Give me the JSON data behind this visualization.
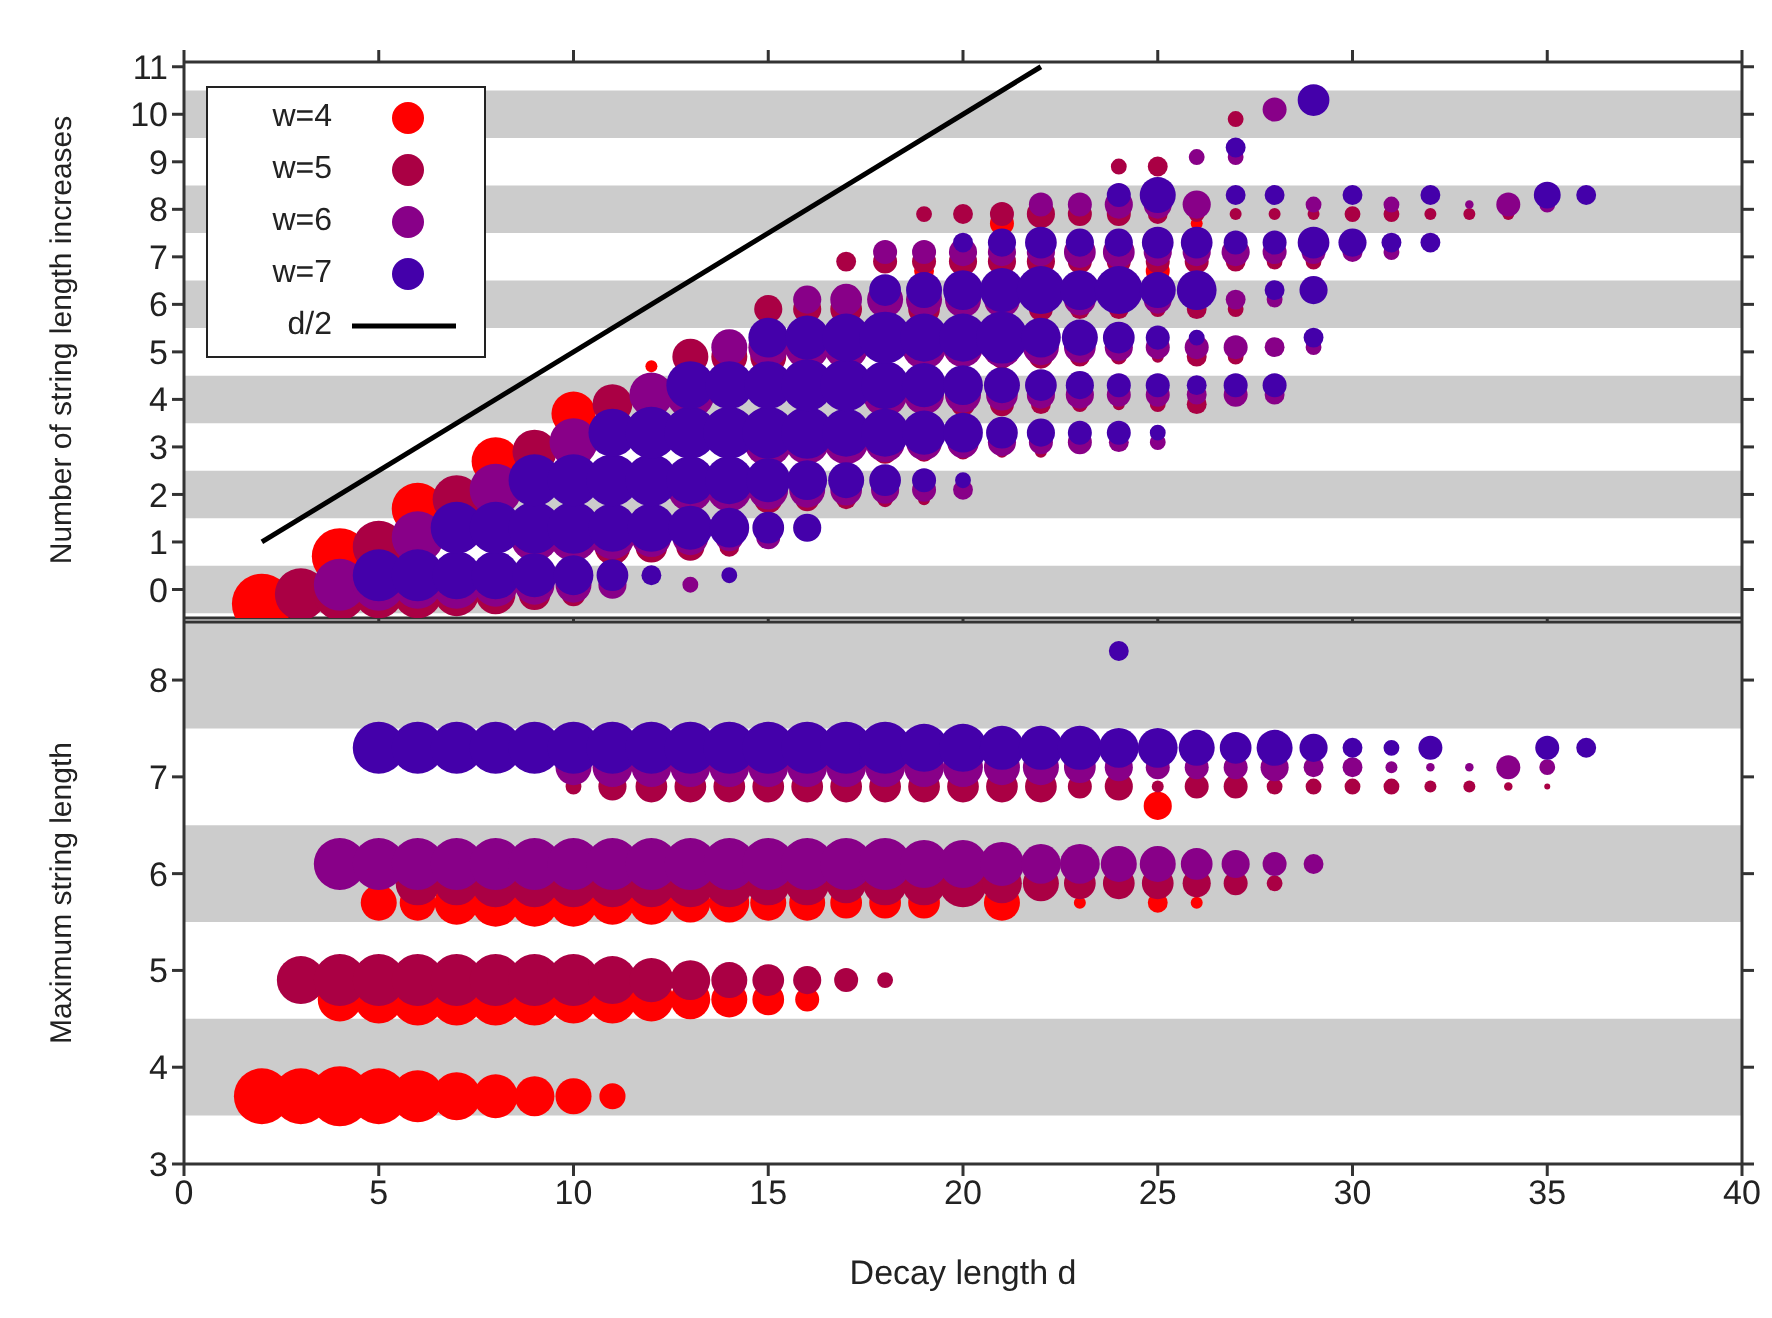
{
  "chart_data": [
    {
      "type": "bubble",
      "ylabel": "Number of string length increases",
      "xlim": [
        0,
        40
      ],
      "xticks": [
        0,
        5,
        10,
        15,
        20,
        25,
        30,
        35,
        40
      ],
      "ylim": [
        -0.6,
        11.1
      ],
      "yticks": [
        0,
        1,
        2,
        3,
        4,
        5,
        6,
        7,
        8,
        9,
        10,
        11
      ],
      "tick_labels": "y",
      "legend": "top left",
      "bands": [
        {
          "axis": "y",
          "from": -0.5,
          "to": 0.5,
          "color": "#cccccc"
        },
        {
          "axis": "y",
          "from": 1.5,
          "to": 2.5,
          "color": "#cccccc"
        },
        {
          "axis": "y",
          "from": 3.5,
          "to": 4.5,
          "color": "#cccccc"
        },
        {
          "axis": "y",
          "from": 5.5,
          "to": 6.5,
          "color": "#cccccc"
        },
        {
          "axis": "y",
          "from": 7.5,
          "to": 8.5,
          "color": "#cccccc"
        },
        {
          "axis": "y",
          "from": 9.5,
          "to": 10.5,
          "color": "#cccccc"
        }
      ],
      "series": [
        {
          "name": "w=4",
          "color": "#ff0000",
          "x": [
            2,
            4,
            6,
            8,
            10,
            12,
            19,
            21,
            25,
            26
          ],
          "values": [
            -0.3,
            0.7,
            1.7,
            2.7,
            3.7,
            4.7,
            6.7,
            7.7,
            6.7,
            7.7
          ],
          "sizes": [
            1,
            0.87,
            0.75,
            0.64,
            0.54,
            0.04,
            0.11,
            0.16,
            0.16,
            0.04
          ]
        },
        {
          "name": "w=5",
          "color": "#aa0044",
          "x": [
            3,
            4,
            5,
            6,
            7,
            8,
            9,
            10,
            5,
            11,
            12,
            13,
            14,
            7,
            15,
            16,
            17,
            18,
            19,
            9,
            18,
            19,
            20,
            21,
            22,
            11,
            20,
            21,
            22,
            23,
            24,
            25,
            26,
            13,
            14,
            15,
            21,
            22,
            23,
            24,
            25,
            26,
            27,
            15,
            16,
            17,
            19,
            22,
            23,
            24,
            25,
            26,
            27,
            17,
            18,
            19,
            20,
            21,
            22,
            23,
            24,
            25,
            26,
            27,
            28,
            29,
            19,
            20,
            21,
            22,
            23,
            24,
            25,
            26,
            27,
            28,
            29,
            30,
            31,
            32,
            33,
            34,
            24,
            25,
            27
          ],
          "values": [
            -0.1,
            -0.1,
            -0.1,
            -0.1,
            -0.1,
            -0.1,
            -0.1,
            -0.1,
            0.9,
            0.9,
            0.9,
            0.9,
            0.9,
            1.9,
            1.9,
            1.9,
            1.9,
            1.9,
            1.9,
            2.9,
            2.9,
            2.9,
            2.9,
            2.9,
            2.9,
            3.9,
            3.9,
            3.9,
            3.9,
            3.9,
            3.9,
            3.9,
            3.9,
            4.9,
            4.9,
            4.9,
            4.9,
            4.9,
            4.9,
            4.9,
            4.9,
            4.9,
            4.9,
            5.9,
            5.9,
            5.9,
            5.9,
            5.9,
            5.9,
            5.9,
            5.9,
            5.9,
            5.9,
            6.9,
            6.9,
            6.9,
            6.9,
            6.9,
            6.9,
            6.9,
            6.9,
            6.9,
            6.9,
            6.9,
            6.9,
            6.9,
            7.9,
            7.9,
            7.9,
            7.9,
            7.9,
            7.9,
            7.9,
            7.9,
            7.9,
            7.9,
            7.9,
            7.9,
            7.9,
            7.9,
            7.9,
            7.9,
            8.9,
            8.9,
            9.9
          ],
          "sizes": [
            0.75,
            0.75,
            0.64,
            0.64,
            0.54,
            0.44,
            0.28,
            0.16,
            0.75,
            0.36,
            0.28,
            0.22,
            0.11,
            0.64,
            0.22,
            0.16,
            0.11,
            0.07,
            0.04,
            0.54,
            0.16,
            0.11,
            0.07,
            0.04,
            0.04,
            0.44,
            0.16,
            0.16,
            0.11,
            0.07,
            0.04,
            0.07,
            0.11,
            0.36,
            0.36,
            0.36,
            0.16,
            0.16,
            0.11,
            0.07,
            0.04,
            0.11,
            0.07,
            0.22,
            0.22,
            0.28,
            0.28,
            0.16,
            0.11,
            0.11,
            0.07,
            0.11,
            0.07,
            0.11,
            0.16,
            0.16,
            0.22,
            0.22,
            0.22,
            0.16,
            0.16,
            0.16,
            0.16,
            0.11,
            0.07,
            0.07,
            0.07,
            0.11,
            0.16,
            0.22,
            0.16,
            0.16,
            0.11,
            0.07,
            0.04,
            0.04,
            0.04,
            0.07,
            0.07,
            0.04,
            0.04,
            0.04,
            0.07,
            0.11,
            0.07
          ]
        },
        {
          "name": "w=6",
          "color": "#880088",
          "x": [
            4,
            5,
            6,
            7,
            8,
            9,
            10,
            11,
            13,
            6,
            9,
            10,
            11,
            12,
            13,
            14,
            15,
            8,
            13,
            14,
            15,
            16,
            17,
            18,
            19,
            20,
            10,
            15,
            16,
            17,
            18,
            19,
            20,
            21,
            22,
            23,
            24,
            25,
            12,
            13,
            18,
            19,
            20,
            21,
            22,
            23,
            24,
            25,
            26,
            27,
            28,
            14,
            15,
            16,
            17,
            19,
            20,
            21,
            22,
            23,
            24,
            25,
            26,
            27,
            28,
            29,
            16,
            17,
            18,
            19,
            20,
            21,
            23,
            25,
            27,
            28,
            18,
            19,
            20,
            21,
            22,
            23,
            24,
            25,
            26,
            27,
            28,
            29,
            30,
            31,
            22,
            23,
            24,
            25,
            26,
            29,
            31,
            33,
            34,
            35,
            26,
            27,
            28
          ],
          "values": [
            0.1,
            0.1,
            0.1,
            0.1,
            0.1,
            0.1,
            0.1,
            0.1,
            0.1,
            1.1,
            1.1,
            1.1,
            1.1,
            1.1,
            1.1,
            1.1,
            1.1,
            2.1,
            2.1,
            2.1,
            2.1,
            2.1,
            2.1,
            2.1,
            2.1,
            2.1,
            3.1,
            3.1,
            3.1,
            3.1,
            3.1,
            3.1,
            3.1,
            3.1,
            3.1,
            3.1,
            3.1,
            3.1,
            4.1,
            4.1,
            4.1,
            4.1,
            4.1,
            4.1,
            4.1,
            4.1,
            4.1,
            4.1,
            4.1,
            4.1,
            4.1,
            5.1,
            5.1,
            5.1,
            5.1,
            5.1,
            5.1,
            5.1,
            5.1,
            5.1,
            5.1,
            5.1,
            5.1,
            5.1,
            5.1,
            5.1,
            6.1,
            6.1,
            6.1,
            6.1,
            6.1,
            6.1,
            6.1,
            6.1,
            6.1,
            6.1,
            7.1,
            7.1,
            7.1,
            7.1,
            7.1,
            7.1,
            7.1,
            7.1,
            7.1,
            7.1,
            7.1,
            7.1,
            7.1,
            7.1,
            8.1,
            8.1,
            8.1,
            8.1,
            8.1,
            8.1,
            8.1,
            8.1,
            8.1,
            8.1,
            9.1,
            9.1,
            10.1
          ],
          "sizes": [
            0.75,
            0.75,
            0.64,
            0.64,
            0.54,
            0.44,
            0.36,
            0.22,
            0.07,
            0.75,
            0.64,
            0.64,
            0.54,
            0.44,
            0.36,
            0.22,
            0.16,
            0.75,
            0.54,
            0.54,
            0.44,
            0.36,
            0.28,
            0.22,
            0.16,
            0.11,
            0.64,
            0.64,
            0.54,
            0.54,
            0.44,
            0.36,
            0.28,
            0.22,
            0.16,
            0.16,
            0.11,
            0.07,
            0.54,
            0.64,
            0.54,
            0.44,
            0.36,
            0.28,
            0.22,
            0.22,
            0.16,
            0.16,
            0.11,
            0.16,
            0.11,
            0.36,
            0.44,
            0.54,
            0.54,
            0.54,
            0.44,
            0.44,
            0.36,
            0.28,
            0.22,
            0.16,
            0.16,
            0.16,
            0.11,
            0.07,
            0.22,
            0.28,
            0.36,
            0.36,
            0.36,
            0.36,
            0.28,
            0.22,
            0.11,
            0.07,
            0.16,
            0.16,
            0.22,
            0.22,
            0.22,
            0.28,
            0.28,
            0.22,
            0.22,
            0.22,
            0.16,
            0.16,
            0.11,
            0.07,
            0.16,
            0.16,
            0.22,
            0.22,
            0.22,
            0.07,
            0.07,
            0.02,
            0.16,
            0.07,
            0.07,
            0.07,
            0.16
          ]
        },
        {
          "name": "w=7",
          "color": "#4400aa",
          "x": [
            5,
            6,
            7,
            8,
            9,
            10,
            11,
            12,
            14,
            7,
            8,
            9,
            10,
            11,
            12,
            13,
            14,
            15,
            16,
            9,
            10,
            11,
            12,
            13,
            14,
            15,
            16,
            17,
            18,
            19,
            20,
            11,
            12,
            13,
            14,
            15,
            16,
            17,
            18,
            19,
            20,
            21,
            22,
            23,
            24,
            25,
            13,
            14,
            15,
            16,
            17,
            18,
            19,
            20,
            21,
            22,
            23,
            24,
            25,
            26,
            27,
            28,
            15,
            16,
            17,
            18,
            19,
            20,
            21,
            22,
            23,
            24,
            25,
            26,
            29,
            18,
            19,
            20,
            21,
            22,
            23,
            24,
            25,
            26,
            28,
            29,
            20,
            21,
            22,
            23,
            24,
            25,
            26,
            27,
            28,
            29,
            30,
            31,
            32,
            24,
            25,
            27,
            28,
            30,
            32,
            35,
            36,
            27,
            29
          ],
          "values": [
            0.3,
            0.3,
            0.3,
            0.3,
            0.3,
            0.3,
            0.3,
            0.3,
            0.3,
            1.3,
            1.3,
            1.3,
            1.3,
            1.3,
            1.3,
            1.3,
            1.3,
            1.3,
            1.3,
            2.3,
            2.3,
            2.3,
            2.3,
            2.3,
            2.3,
            2.3,
            2.3,
            2.3,
            2.3,
            2.3,
            2.3,
            3.3,
            3.3,
            3.3,
            3.3,
            3.3,
            3.3,
            3.3,
            3.3,
            3.3,
            3.3,
            3.3,
            3.3,
            3.3,
            3.3,
            3.3,
            4.3,
            4.3,
            4.3,
            4.3,
            4.3,
            4.3,
            4.3,
            4.3,
            4.3,
            4.3,
            4.3,
            4.3,
            4.3,
            4.3,
            4.3,
            4.3,
            5.3,
            5.3,
            5.3,
            5.3,
            5.3,
            5.3,
            5.3,
            5.3,
            5.3,
            5.3,
            5.3,
            5.3,
            5.3,
            6.3,
            6.3,
            6.3,
            6.3,
            6.3,
            6.3,
            6.3,
            6.3,
            6.3,
            6.3,
            6.3,
            7.3,
            7.3,
            7.3,
            7.3,
            7.3,
            7.3,
            7.3,
            7.3,
            7.3,
            7.3,
            7.3,
            7.3,
            7.3,
            8.3,
            8.3,
            8.3,
            8.3,
            8.3,
            8.3,
            8.3,
            8.3,
            9.3,
            10.3
          ],
          "sizes": [
            0.75,
            0.75,
            0.64,
            0.64,
            0.54,
            0.44,
            0.28,
            0.11,
            0.07,
            0.75,
            0.75,
            0.75,
            0.75,
            0.64,
            0.64,
            0.54,
            0.44,
            0.28,
            0.22,
            0.75,
            0.75,
            0.75,
            0.75,
            0.64,
            0.64,
            0.54,
            0.44,
            0.36,
            0.28,
            0.16,
            0.07,
            0.64,
            0.75,
            0.75,
            0.75,
            0.75,
            0.75,
            0.64,
            0.64,
            0.54,
            0.44,
            0.28,
            0.22,
            0.16,
            0.16,
            0.07,
            0.64,
            0.64,
            0.64,
            0.75,
            0.75,
            0.64,
            0.54,
            0.44,
            0.36,
            0.28,
            0.22,
            0.16,
            0.16,
            0.11,
            0.16,
            0.16,
            0.44,
            0.54,
            0.64,
            0.75,
            0.64,
            0.64,
            0.75,
            0.44,
            0.36,
            0.28,
            0.16,
            0.07,
            0.11,
            0.28,
            0.36,
            0.44,
            0.54,
            0.64,
            0.44,
            0.64,
            0.36,
            0.44,
            0.11,
            0.22,
            0.11,
            0.22,
            0.28,
            0.22,
            0.22,
            0.28,
            0.28,
            0.16,
            0.16,
            0.28,
            0.22,
            0.11,
            0.11,
            0.16,
            0.36,
            0.11,
            0.11,
            0.11,
            0.11,
            0.2,
            0.11,
            0.11,
            0.28
          ]
        },
        {
          "name": "d/2",
          "type": "line",
          "color": "#000000",
          "x": [
            2,
            22
          ],
          "values": [
            1,
            11
          ]
        }
      ]
    },
    {
      "type": "bubble",
      "xlabel": "Decay length d",
      "ylabel": "Maximum string length",
      "xlim": [
        0,
        40
      ],
      "xticks": [
        0,
        5,
        10,
        15,
        20,
        25,
        30,
        35,
        40
      ],
      "ylim": [
        3,
        8.6
      ],
      "yticks": [
        3,
        4,
        5,
        6,
        7,
        8
      ],
      "bands": [
        {
          "axis": "y",
          "from": 3.5,
          "to": 4.5,
          "color": "#cccccc"
        },
        {
          "axis": "y",
          "from": 5.5,
          "to": 6.5,
          "color": "#cccccc"
        },
        {
          "axis": "y",
          "from": 7.5,
          "to": 8.6,
          "color": "#cccccc"
        }
      ],
      "series": [
        {
          "color": "#ff0000",
          "x": [
            2,
            3,
            4,
            5,
            6,
            7,
            8,
            9,
            10,
            11,
            4,
            5,
            6,
            7,
            8,
            9,
            10,
            11,
            12,
            13,
            14,
            15,
            16,
            5,
            6,
            7,
            8,
            9,
            10,
            11,
            12,
            13,
            14,
            15,
            16,
            17,
            18,
            19,
            21,
            23,
            25,
            26,
            25
          ],
          "values": [
            3.7,
            3.7,
            3.7,
            3.7,
            3.7,
            3.7,
            3.7,
            3.7,
            3.7,
            3.7,
            4.7,
            4.7,
            4.7,
            4.7,
            4.7,
            4.7,
            4.7,
            4.7,
            4.7,
            4.7,
            4.7,
            4.7,
            4.7,
            5.7,
            5.7,
            5.7,
            5.7,
            5.7,
            5.7,
            5.7,
            5.7,
            5.7,
            5.7,
            5.7,
            5.7,
            5.7,
            5.7,
            5.7,
            5.7,
            5.7,
            5.7,
            5.7,
            6.7
          ],
          "sizes": [
            0.87,
            0.87,
            1,
            0.87,
            0.75,
            0.64,
            0.54,
            0.44,
            0.36,
            0.19,
            0.54,
            0.64,
            0.75,
            0.75,
            0.75,
            0.75,
            0.64,
            0.64,
            0.54,
            0.44,
            0.36,
            0.28,
            0.16,
            0.36,
            0.36,
            0.54,
            0.64,
            0.64,
            0.64,
            0.54,
            0.54,
            0.44,
            0.44,
            0.36,
            0.36,
            0.28,
            0.28,
            0.28,
            0.36,
            0.04,
            0.11,
            0.04,
            0.22
          ]
        },
        {
          "color": "#aa0044",
          "x": [
            3,
            4,
            5,
            6,
            7,
            8,
            9,
            10,
            11,
            12,
            13,
            14,
            15,
            16,
            17,
            18,
            6,
            7,
            8,
            9,
            10,
            11,
            12,
            13,
            14,
            15,
            16,
            17,
            18,
            19,
            20,
            21,
            22,
            23,
            24,
            25,
            26,
            27,
            28,
            10,
            11,
            12,
            13,
            14,
            15,
            16,
            17,
            18,
            19,
            20,
            21,
            22,
            23,
            24,
            25,
            26,
            27,
            28,
            29,
            30,
            31,
            32,
            33,
            34,
            35
          ],
          "values": [
            4.9,
            4.9,
            4.9,
            4.9,
            4.9,
            4.9,
            4.9,
            4.9,
            4.9,
            4.9,
            4.9,
            4.9,
            4.9,
            4.9,
            4.9,
            4.9,
            5.9,
            5.9,
            5.9,
            5.9,
            5.9,
            5.9,
            5.9,
            5.9,
            5.9,
            5.9,
            5.9,
            5.9,
            5.9,
            5.9,
            5.9,
            5.9,
            5.9,
            5.9,
            5.9,
            5.9,
            5.9,
            5.9,
            5.9,
            6.9,
            6.9,
            6.9,
            6.9,
            6.9,
            6.9,
            6.9,
            6.9,
            6.9,
            6.9,
            6.9,
            6.9,
            6.9,
            6.9,
            6.9,
            6.9,
            6.9,
            6.9,
            6.9,
            6.9,
            6.9,
            6.9,
            6.9,
            6.9,
            6.9,
            6.9
          ],
          "sizes": [
            0.64,
            0.75,
            0.75,
            0.75,
            0.75,
            0.75,
            0.75,
            0.75,
            0.64,
            0.54,
            0.44,
            0.36,
            0.28,
            0.22,
            0.16,
            0.07,
            0.54,
            0.54,
            0.64,
            0.64,
            0.64,
            0.64,
            0.64,
            0.64,
            0.64,
            0.54,
            0.54,
            0.44,
            0.54,
            0.54,
            0.64,
            0.44,
            0.36,
            0.28,
            0.28,
            0.28,
            0.22,
            0.16,
            0.07,
            0.07,
            0.22,
            0.28,
            0.28,
            0.28,
            0.28,
            0.28,
            0.28,
            0.28,
            0.28,
            0.28,
            0.28,
            0.28,
            0.16,
            0.22,
            0.04,
            0.16,
            0.16,
            0.07,
            0.07,
            0.07,
            0.07,
            0.04,
            0.04,
            0.02,
            0.01
          ]
        },
        {
          "color": "#880088",
          "x": [
            4,
            5,
            6,
            7,
            8,
            9,
            10,
            11,
            12,
            13,
            14,
            15,
            16,
            17,
            18,
            19,
            20,
            21,
            22,
            23,
            24,
            25,
            26,
            27,
            28,
            29,
            10,
            11,
            12,
            13,
            14,
            15,
            16,
            17,
            18,
            19,
            20,
            21,
            22,
            23,
            24,
            25,
            26,
            27,
            28,
            29,
            30,
            31,
            32,
            33,
            34,
            35
          ],
          "values": [
            6.1,
            6.1,
            6.1,
            6.1,
            6.1,
            6.1,
            6.1,
            6.1,
            6.1,
            6.1,
            6.1,
            6.1,
            6.1,
            6.1,
            6.1,
            6.1,
            6.1,
            6.1,
            6.1,
            6.1,
            6.1,
            6.1,
            6.1,
            6.1,
            6.1,
            6.1,
            7.1,
            7.1,
            7.1,
            7.1,
            7.1,
            7.1,
            7.1,
            7.1,
            7.1,
            7.1,
            7.1,
            7.1,
            7.1,
            7.1,
            7.1,
            7.1,
            7.1,
            7.1,
            7.1,
            7.1,
            7.1,
            7.1,
            7.1,
            7.1,
            7.1,
            7.1
          ],
          "sizes": [
            0.75,
            0.75,
            0.75,
            0.75,
            0.75,
            0.75,
            0.75,
            0.75,
            0.75,
            0.75,
            0.75,
            0.75,
            0.75,
            0.75,
            0.75,
            0.64,
            0.64,
            0.54,
            0.44,
            0.44,
            0.36,
            0.36,
            0.28,
            0.22,
            0.16,
            0.11,
            0.36,
            0.44,
            0.44,
            0.44,
            0.44,
            0.44,
            0.44,
            0.44,
            0.44,
            0.44,
            0.44,
            0.36,
            0.36,
            0.28,
            0.22,
            0.16,
            0.16,
            0.16,
            0.22,
            0.11,
            0.11,
            0.04,
            0.02,
            0.02,
            0.16,
            0.07
          ]
        },
        {
          "color": "#4400aa",
          "x": [
            5,
            6,
            7,
            8,
            9,
            10,
            11,
            12,
            13,
            14,
            15,
            16,
            17,
            18,
            19,
            20,
            21,
            22,
            23,
            24,
            25,
            26,
            27,
            28,
            29,
            30,
            31,
            32,
            35,
            36,
            24
          ],
          "values": [
            7.3,
            7.3,
            7.3,
            7.3,
            7.3,
            7.3,
            7.3,
            7.3,
            7.3,
            7.3,
            7.3,
            7.3,
            7.3,
            7.3,
            7.3,
            7.3,
            7.3,
            7.3,
            7.3,
            7.3,
            7.3,
            7.3,
            7.3,
            7.3,
            7.3,
            7.3,
            7.3,
            7.3,
            7.3,
            7.3,
            8.3
          ],
          "sizes": [
            0.75,
            0.75,
            0.75,
            0.75,
            0.75,
            0.75,
            0.75,
            0.75,
            0.75,
            0.75,
            0.75,
            0.75,
            0.75,
            0.75,
            0.64,
            0.64,
            0.54,
            0.54,
            0.54,
            0.44,
            0.44,
            0.36,
            0.28,
            0.36,
            0.22,
            0.11,
            0.07,
            0.16,
            0.16,
            0.11,
            0.11
          ]
        }
      ]
    }
  ]
}
